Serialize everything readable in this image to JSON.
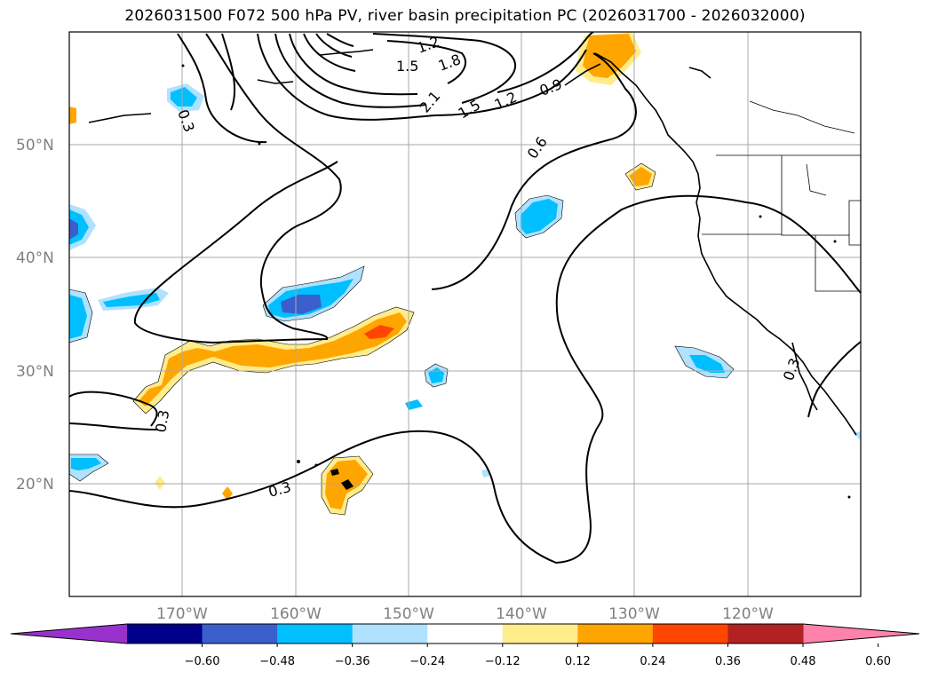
{
  "title": "2026031500 F072 500 hPa PV, river basin precipitation PC (2026031700 - 2026032000)",
  "map": {
    "lat_labels": [
      "50°N",
      "40°N",
      "30°N",
      "20°N"
    ],
    "lon_labels": [
      "170°W",
      "160°W",
      "150°W",
      "140°W",
      "130°W",
      "120°W"
    ],
    "contour_labels": [
      "1.2",
      "1.5",
      "1.8",
      "2.1",
      "1.5",
      "1.2",
      "0.9",
      "0.6",
      "0.3",
      "0.3",
      "0.3",
      "0.3"
    ]
  },
  "colorbar": {
    "ticks": [
      "−0.60",
      "−0.48",
      "−0.36",
      "−0.24",
      "−0.12",
      "0.12",
      "0.24",
      "0.36",
      "0.48",
      "0.60"
    ],
    "colors": [
      "#9932cc",
      "#00008b",
      "#3a5fcd",
      "#00bfff",
      "#b0e2ff",
      "#ffffff",
      "#ffec8b",
      "#ffa500",
      "#ff4500",
      "#b22222",
      "#ff82ab"
    ]
  }
}
